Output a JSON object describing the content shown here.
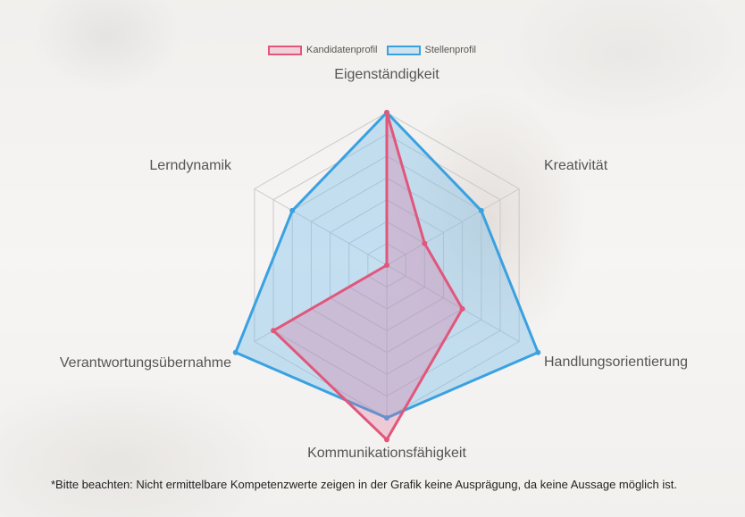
{
  "note": "*Bitte beachten: Nicht ermittelbare Kompetenzwerte zeigen in der Grafik keine Ausprägung, da keine Aussage möglich ist.",
  "colors": {
    "candidate_line": "#e0577b",
    "candidate_fill": "rgba(225,100,150,0.28)",
    "job_line": "#3aa1e0",
    "job_fill": "rgba(120,190,235,0.40)",
    "grid": "#c9c9c9"
  },
  "chart_data": {
    "type": "radar",
    "categories": [
      "Eigenständigkeit",
      "Kreativität",
      "Handlungsorientierung",
      "Kommunikationsfähigkeit",
      "Verantwortungsübernahme",
      "Lerndynamik"
    ],
    "rlim": [
      0,
      7
    ],
    "grid": true,
    "legend_position": "top",
    "series": [
      {
        "name": "Kandidatenprofil",
        "values": [
          7,
          2,
          4,
          8,
          6,
          0
        ]
      },
      {
        "name": "Stellenprofil",
        "values": [
          7,
          5,
          8,
          7,
          8,
          5
        ]
      }
    ]
  }
}
